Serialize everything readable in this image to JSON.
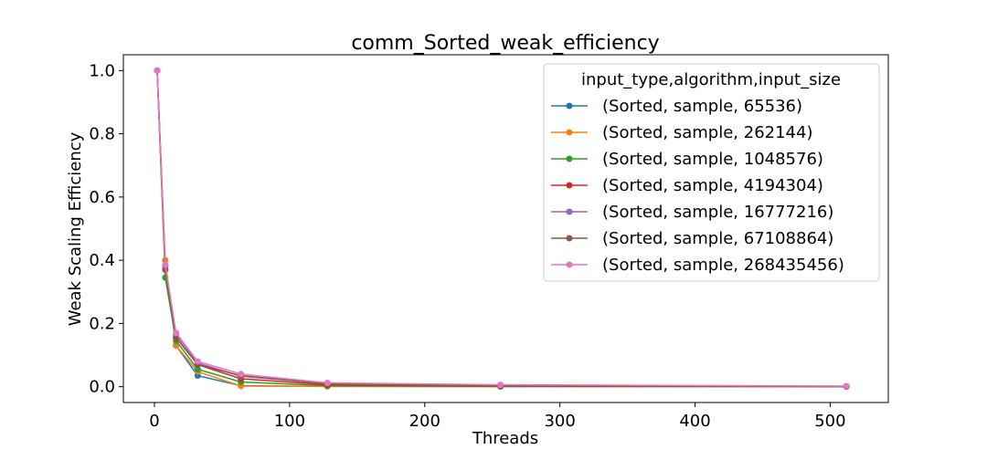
{
  "chart_data": {
    "type": "line",
    "title": "comm_Sorted_weak_efficiency",
    "xlabel": "Threads",
    "ylabel": "Weak Scaling Efficiency",
    "x": [
      2,
      8,
      16,
      32,
      64,
      128,
      256,
      512
    ],
    "xlim": [
      -23,
      543
    ],
    "ylim": [
      -0.05,
      1.05
    ],
    "xticks": [
      0,
      100,
      200,
      300,
      400,
      500
    ],
    "yticks": [
      0.0,
      0.2,
      0.4,
      0.6,
      0.8,
      1.0
    ],
    "ytick_labels": [
      "0.0",
      "0.2",
      "0.4",
      "0.6",
      "0.8",
      "1.0"
    ],
    "grid": false,
    "legend": {
      "title": "input_type,algorithm,input_size",
      "placement": "upper right"
    },
    "series": [
      {
        "name": "(Sorted, sample, 65536)",
        "color": "#1f77b4",
        "values": [
          1.0,
          0.385,
          0.13,
          0.035,
          0.003,
          0.001,
          0.0005,
          0.0002
        ]
      },
      {
        "name": "(Sorted, sample, 262144)",
        "color": "#ff7f0e",
        "values": [
          1.0,
          0.4,
          0.13,
          0.048,
          0.002,
          0.001,
          0.0005,
          0.0002
        ]
      },
      {
        "name": "(Sorted, sample, 1048576)",
        "color": "#2ca02c",
        "values": [
          1.0,
          0.345,
          0.145,
          0.055,
          0.015,
          0.003,
          0.001,
          0.0005
        ]
      },
      {
        "name": "(Sorted, sample, 4194304)",
        "color": "#d62728",
        "values": [
          1.0,
          0.37,
          0.155,
          0.07,
          0.025,
          0.006,
          0.002,
          0.0008
        ]
      },
      {
        "name": "(Sorted, sample, 16777216)",
        "color": "#9467bd",
        "values": [
          1.0,
          0.38,
          0.165,
          0.075,
          0.033,
          0.009,
          0.003,
          0.001
        ]
      },
      {
        "name": "(Sorted, sample, 67108864)",
        "color": "#8c564b",
        "values": [
          1.0,
          0.37,
          0.155,
          0.07,
          0.035,
          0.009,
          0.003,
          0.001
        ]
      },
      {
        "name": "(Sorted, sample, 268435456)",
        "color": "#e377c2",
        "values": [
          1.0,
          0.385,
          0.17,
          0.08,
          0.04,
          0.012,
          0.006,
          0.002
        ]
      }
    ]
  }
}
